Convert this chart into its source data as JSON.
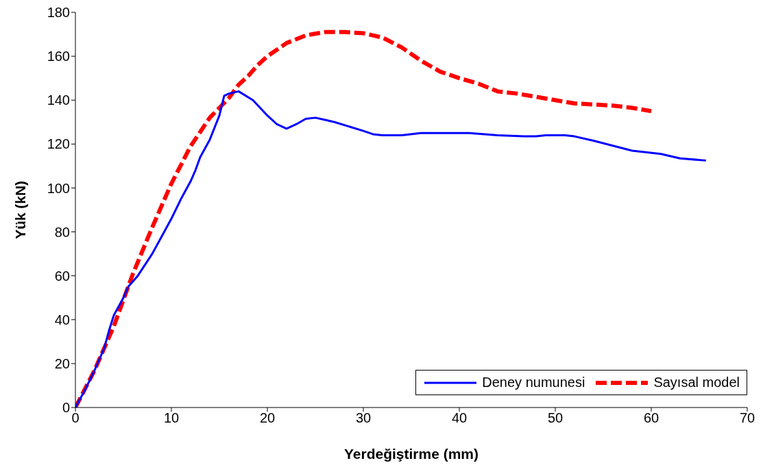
{
  "chart_data": {
    "type": "line",
    "xlabel": "Yerdeğiştirme (mm)",
    "ylabel": "Yük (kN)",
    "xlim": [
      0,
      70
    ],
    "xticks": [
      0,
      10,
      20,
      30,
      40,
      50,
      60,
      70
    ],
    "ylim": [
      0,
      180
    ],
    "yticks": [
      0,
      20,
      40,
      60,
      80,
      100,
      120,
      140,
      160,
      180
    ],
    "legend": "bottom right",
    "marker": "none",
    "series": [
      {
        "name": "Deney numunesi",
        "color": "#0000ff",
        "line_style": "solid",
        "x": [
          0,
          1,
          2,
          3,
          3.5,
          4,
          5,
          5.5,
          6.5,
          8,
          9,
          10,
          11,
          12,
          12.5,
          13,
          14,
          15,
          15.5,
          16,
          17,
          18.5,
          20,
          21,
          22,
          23,
          24,
          25,
          26,
          27,
          30,
          31,
          32,
          34,
          36,
          41,
          44,
          47,
          48,
          49,
          51,
          52,
          54,
          58,
          61,
          63,
          65.7
        ],
        "values": [
          0,
          8,
          17,
          27,
          35,
          42,
          50,
          55,
          60,
          70,
          78,
          86,
          95,
          103,
          108,
          114,
          122,
          133,
          142,
          143,
          144,
          140,
          133,
          129,
          127,
          129,
          131.5,
          132,
          131,
          130,
          126,
          124.5,
          124,
          124,
          125,
          125,
          124,
          123.5,
          123.5,
          124,
          124,
          123.5,
          121.5,
          117,
          115.5,
          113.5,
          112.5
        ]
      },
      {
        "name": "Sayısal model",
        "color": "#ff0000",
        "line_style": "dashed",
        "x": [
          0,
          2,
          4,
          6,
          8,
          10,
          12,
          14,
          16,
          17,
          18,
          19,
          20,
          22,
          24,
          26,
          28,
          30,
          32,
          34,
          36,
          38,
          40,
          42,
          44,
          46,
          48,
          50,
          52,
          54,
          56,
          58,
          60
        ],
        "values": [
          0,
          17,
          37,
          61,
          82,
          102,
          119,
          132,
          141,
          147,
          151,
          156,
          160,
          166,
          169.5,
          171,
          171,
          170.5,
          168.5,
          164,
          158,
          153,
          150,
          147.5,
          144,
          143,
          141.5,
          140,
          138.5,
          138,
          137.5,
          136.5,
          135
        ]
      }
    ]
  }
}
